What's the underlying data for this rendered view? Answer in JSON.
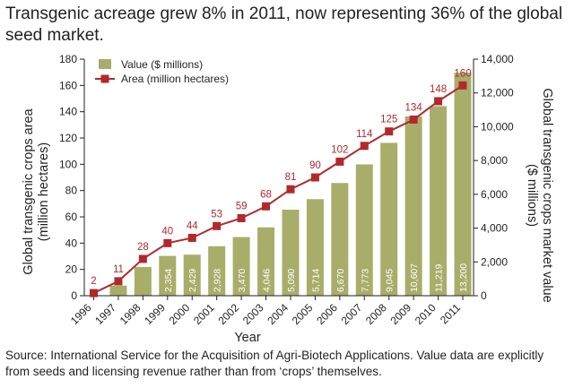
{
  "title": "Transgenic acreage grew 8% in 2011, now representing 36% of the global seed market.",
  "source": "Source: International Service for the Acquisition of Agri-Biotech Applications. Value data are explicitly from seeds and licensing revenue rather than from ‘crops’ themselves.",
  "chart_data": {
    "type": "bar",
    "title": "Transgenic acreage grew 8% in 2011, now representing 36% of the global seed market.",
    "xlabel": "Year",
    "ylabel_left": "Global transgenic crops area (million hectares)",
    "ylabel_right": "Global transgenic crops market value ($ millions)",
    "ylim_left": [
      0,
      180
    ],
    "ylim_right": [
      0,
      14000
    ],
    "yticks_left": [
      "0",
      "20",
      "40",
      "60",
      "80",
      "100",
      "120",
      "140",
      "160",
      "180"
    ],
    "yticks_right": [
      "0",
      "2,000",
      "4,000",
      "6,000",
      "8,000",
      "10,000",
      "12,000",
      "14,000"
    ],
    "categories": [
      "1996",
      "1997",
      "1998",
      "1999",
      "2000",
      "2001",
      "2002",
      "2003",
      "2004",
      "2005",
      "2006",
      "2007",
      "2008",
      "2009",
      "2010",
      "2011"
    ],
    "series": [
      {
        "name": "Value ($ millions)",
        "type": "bar",
        "axis": "right",
        "color": "#a9ad6a",
        "values": [
          null,
          600,
          1700,
          2354,
          2429,
          2928,
          3470,
          4046,
          5090,
          5714,
          6670,
          7773,
          9045,
          10607,
          11219,
          13200
        ],
        "labels": [
          "",
          "",
          "",
          "2,354",
          "2,429",
          "2,928",
          "3,470",
          "4,046",
          "5,090",
          "5,714",
          "6,670",
          "7,773",
          "9,045",
          "10,607",
          "11,219",
          "13,200"
        ]
      },
      {
        "name": "Area (million hectares)",
        "type": "line",
        "axis": "left",
        "color": "#b2282c",
        "values": [
          2,
          11,
          28,
          40,
          44,
          53,
          59,
          68,
          81,
          90,
          102,
          114,
          125,
          134,
          148,
          160
        ],
        "labels": [
          "2",
          "11",
          "28",
          "40",
          "44",
          "53",
          "59",
          "68",
          "81",
          "90",
          "102",
          "114",
          "125",
          "134",
          "148",
          "160"
        ]
      }
    ],
    "legend": "top-left",
    "grid": false
  }
}
